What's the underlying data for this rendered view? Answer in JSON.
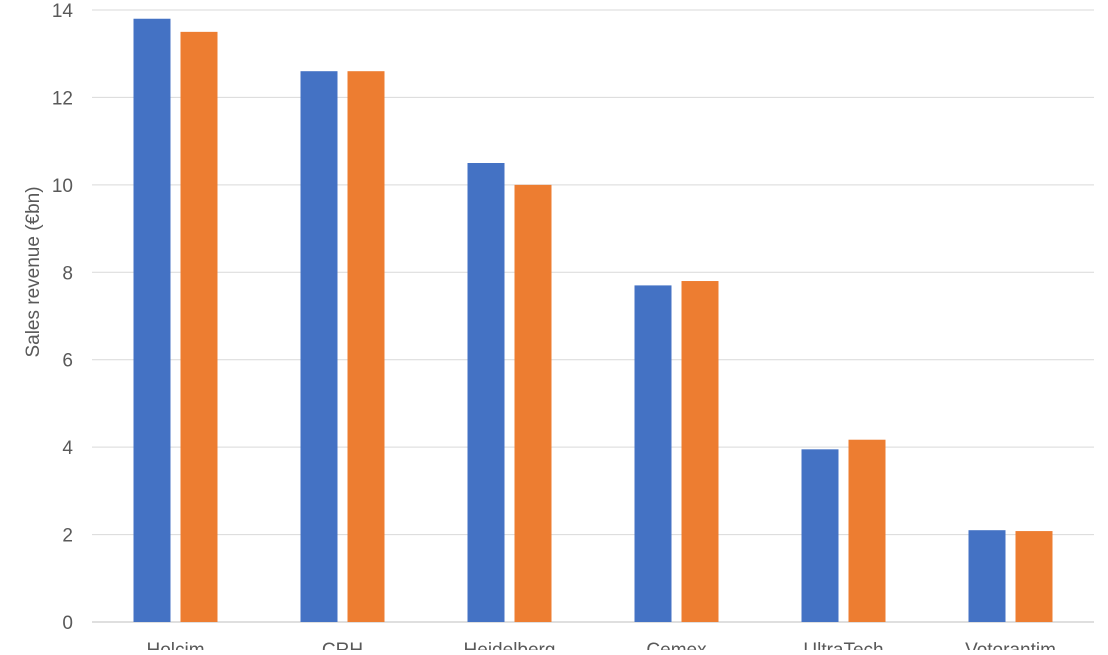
{
  "chart_data": {
    "type": "bar",
    "ylabel": "Sales revenue (€bn)",
    "xlabel": "",
    "title": "",
    "ylim": [
      0,
      14
    ],
    "yticks": [
      0,
      2,
      4,
      6,
      8,
      10,
      12,
      14
    ],
    "grid": true,
    "categories": [
      "Holcim",
      "CRH",
      "Heidelberg",
      "Cemex",
      "UltraTech",
      "Votorantim"
    ],
    "series": [
      {
        "color": "#4472C4",
        "values": [
          13.8,
          12.6,
          10.5,
          7.7,
          3.95,
          2.1
        ]
      },
      {
        "color": "#ED7D31",
        "values": [
          13.5,
          12.6,
          10.0,
          7.8,
          4.17,
          2.08
        ]
      }
    ]
  }
}
